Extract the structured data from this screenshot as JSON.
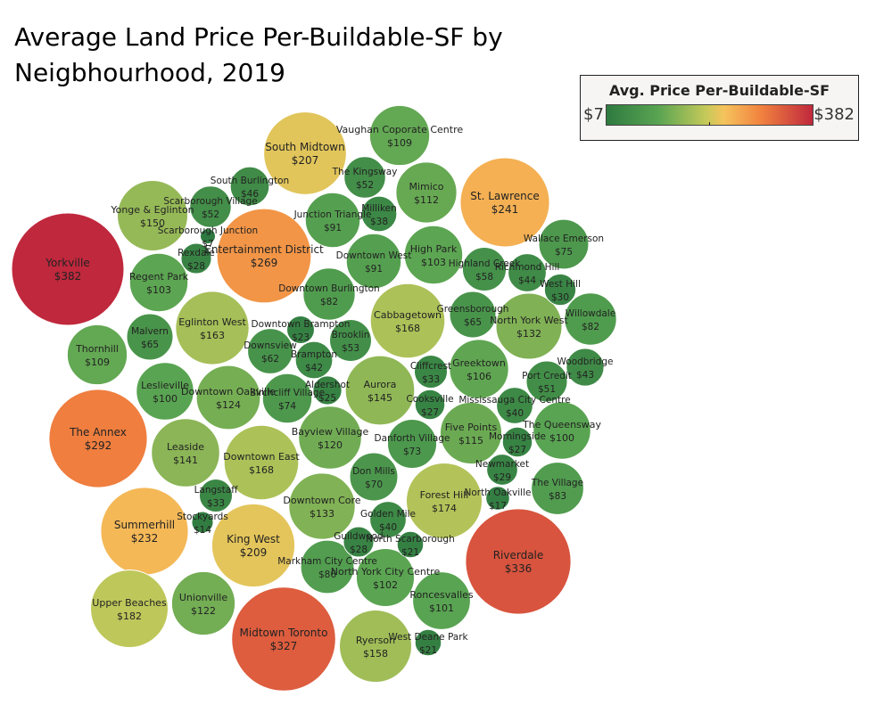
{
  "title": "Average Land Price Per-Buildable-SF by Neigbhourhood, 2019",
  "legend": {
    "title": "Avg. Price Per-Buildable-SF",
    "min_label": "$7",
    "max_label": "$382",
    "colors": [
      "#2e7a40",
      "#59a452",
      "#c4c95a",
      "#f5c35c",
      "#f1823f",
      "#c0283d"
    ]
  },
  "chart_data": {
    "type": "bubble",
    "title": "Average Land Price Per-Buildable-SF by Neigbhourhood, 2019",
    "legend_title": "Avg. Price Per-Buildable-SF",
    "color_range": [
      7,
      382
    ],
    "points": [
      {
        "name": "Yorkville",
        "label": "$382",
        "value": 382
      },
      {
        "name": "Riverdale",
        "label": "$336",
        "value": 336
      },
      {
        "name": "Midtown Toronto",
        "label": "$327",
        "value": 327
      },
      {
        "name": "The Annex",
        "label": "$292",
        "value": 292
      },
      {
        "name": "Entertainment District",
        "label": "$269",
        "value": 269
      },
      {
        "name": "St. Lawrence",
        "label": "$241",
        "value": 241
      },
      {
        "name": "Summerhill",
        "label": "$232",
        "value": 232
      },
      {
        "name": "King West",
        "label": "$209",
        "value": 209
      },
      {
        "name": "South Midtown",
        "label": "$207",
        "value": 207
      },
      {
        "name": "Upper Beaches",
        "label": "$182",
        "value": 182
      },
      {
        "name": "Forest Hill",
        "label": "$174",
        "value": 174
      },
      {
        "name": "Cabbagetown",
        "label": "$168",
        "value": 168
      },
      {
        "name": "Downtown East",
        "label": "$168",
        "value": 168
      },
      {
        "name": "Eglinton West",
        "label": "$163",
        "value": 163
      },
      {
        "name": "Ryerson",
        "label": "$158",
        "value": 158
      },
      {
        "name": "Yonge & Eglinton",
        "label": "$150",
        "value": 150
      },
      {
        "name": "Aurora",
        "label": "$145",
        "value": 145
      },
      {
        "name": "Leaside",
        "label": "$141",
        "value": 141
      },
      {
        "name": "Downtown Core",
        "label": "$133",
        "value": 133
      },
      {
        "name": "North York West",
        "label": "$132",
        "value": 132
      },
      {
        "name": "Downtown Oakville",
        "label": "$124",
        "value": 124
      },
      {
        "name": "Unionville",
        "label": "$122",
        "value": 122
      },
      {
        "name": "Bayview Village",
        "label": "$120",
        "value": 120
      },
      {
        "name": "Five Points",
        "label": "$115",
        "value": 115
      },
      {
        "name": "Mimico",
        "label": "$112",
        "value": 112
      },
      {
        "name": "Vaughan Coporate Centre",
        "label": "$109",
        "value": 109
      },
      {
        "name": "Thornhill",
        "label": "$109",
        "value": 109
      },
      {
        "name": "Greektown",
        "label": "$106",
        "value": 106
      },
      {
        "name": "High Park",
        "label": "$103",
        "value": 103
      },
      {
        "name": "Regent Park",
        "label": "$103",
        "value": 103
      },
      {
        "name": "North York City Centre",
        "label": "$102",
        "value": 102
      },
      {
        "name": "Roncesvalles",
        "label": "$101",
        "value": 101
      },
      {
        "name": "Leslieville",
        "label": "$100",
        "value": 100
      },
      {
        "name": "The Queensway",
        "label": "$100",
        "value": 100
      },
      {
        "name": "Junction Triangle",
        "label": "$91",
        "value": 91
      },
      {
        "name": "Downtown West",
        "label": "$91",
        "value": 91
      },
      {
        "name": "Markham City Centre",
        "label": "$86",
        "value": 86
      },
      {
        "name": "The Village",
        "label": "$83",
        "value": 83
      },
      {
        "name": "Downtown Burlington",
        "label": "$82",
        "value": 82
      },
      {
        "name": "Willowdale",
        "label": "$82",
        "value": 82
      },
      {
        "name": "Wallace Emerson",
        "label": "$75",
        "value": 75
      },
      {
        "name": "Birchcliff Village",
        "label": "$74",
        "value": 74
      },
      {
        "name": "Danforth Village",
        "label": "$73",
        "value": 73
      },
      {
        "name": "Don Mills",
        "label": "$70",
        "value": 70
      },
      {
        "name": "Malvern",
        "label": "$65",
        "value": 65
      },
      {
        "name": "Greensborough",
        "label": "$65",
        "value": 65
      },
      {
        "name": "Downsview",
        "label": "$62",
        "value": 62
      },
      {
        "name": "Highland Creek",
        "label": "$58",
        "value": 58
      },
      {
        "name": "Brooklin",
        "label": "$53",
        "value": 53
      },
      {
        "name": "The Kingsway",
        "label": "$52",
        "value": 52
      },
      {
        "name": "Scarborough Village",
        "label": "$52",
        "value": 52
      },
      {
        "name": "Port Credit",
        "label": "$51",
        "value": 51
      },
      {
        "name": "South Burlington",
        "label": "$46",
        "value": 46
      },
      {
        "name": "Richmond Hill",
        "label": "$44",
        "value": 44
      },
      {
        "name": "Woodbridge",
        "label": "$43",
        "value": 43
      },
      {
        "name": "Brampton",
        "label": "$42",
        "value": 42
      },
      {
        "name": "Mississauga City Centre",
        "label": "$40",
        "value": 40
      },
      {
        "name": "Golden Mile",
        "label": "$40",
        "value": 40
      },
      {
        "name": "Milliken",
        "label": "$38",
        "value": 38
      },
      {
        "name": "Cliffcrest",
        "label": "$33",
        "value": 33
      },
      {
        "name": "Langstaff",
        "label": "$33",
        "value": 33
      },
      {
        "name": "West Hill",
        "label": "$30",
        "value": 30
      },
      {
        "name": "Newmarket",
        "label": "$29",
        "value": 29
      },
      {
        "name": "Rexdale",
        "label": "$28",
        "value": 28
      },
      {
        "name": "Guildwood",
        "label": "$28",
        "value": 28
      },
      {
        "name": "Cooksville",
        "label": "$27",
        "value": 27
      },
      {
        "name": "Morningside",
        "label": "$27",
        "value": 27
      },
      {
        "name": "Aldershot",
        "label": "$25",
        "value": 25
      },
      {
        "name": "Downtown Brampton",
        "label": "$23",
        "value": 23
      },
      {
        "name": "North Scarborough",
        "label": "$21",
        "value": 21
      },
      {
        "name": "West Deane Park",
        "label": "$21",
        "value": 21
      },
      {
        "name": "North Oakville",
        "label": "$17",
        "value": 17
      },
      {
        "name": "Stockyards",
        "label": "$14",
        "value": 14
      },
      {
        "name": "Scarborough Junction",
        "label": "$7",
        "value": 7
      }
    ]
  }
}
